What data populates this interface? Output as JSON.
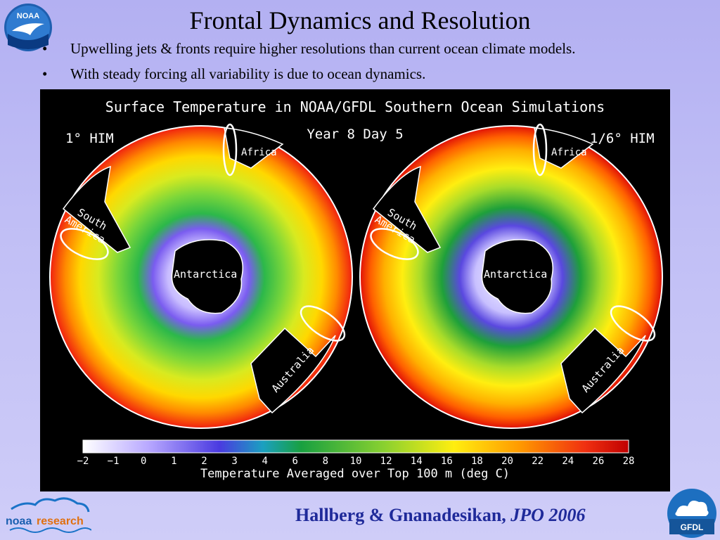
{
  "title": "Frontal Dynamics and Resolution",
  "bullets": [
    {
      "marker": "•",
      "text": "Upwelling jets & fronts require higher resolutions than current ocean climate models."
    },
    {
      "marker": "•",
      "text": "With steady forcing all variability is due to ocean dynamics."
    }
  ],
  "logo": {
    "noaa": "NOAA",
    "noaa_research_a": "noaa",
    "noaa_research_b": "research",
    "gfdl": "GFDL"
  },
  "figure": {
    "title": "Surface Temperature in NOAA/GFDL Southern Ocean Simulations",
    "subtitle": "Year 8 Day 5",
    "left_label": "1° HIM",
    "right_label": "1/6° HIM",
    "regions": {
      "africa": "Africa",
      "south": "South",
      "america": "America",
      "antarctica": "Antarctica",
      "australia": "Australia"
    },
    "colorbar": {
      "ticks": [
        "−2",
        "−1",
        "0",
        "1",
        "2",
        "3",
        "4",
        "6",
        "8",
        "10",
        "12",
        "14",
        "16",
        "18",
        "20",
        "22",
        "24",
        "26",
        "28"
      ],
      "label": "Temperature Averaged over Top 100 m (deg C)"
    }
  },
  "citation": {
    "authors": "Hallberg & Gnanadesikan,",
    "journal": "JPO 2006"
  }
}
